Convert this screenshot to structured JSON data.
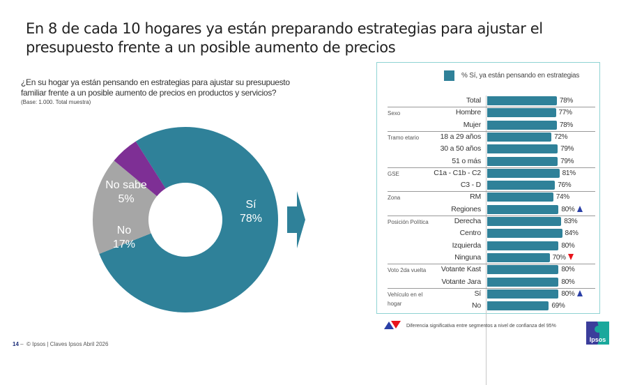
{
  "header": {
    "title": "En 8 de cada 10 hogares ya están preparando estrategias para ajustar el presupuesto frente a un posible aumento de precios"
  },
  "question": {
    "text": "¿En su hogar ya están pensando en estrategias para ajustar su presupuesto familiar frente a un posible aumento de precios en productos y servicios?",
    "base": "(Base: 1.000. Total muestra)"
  },
  "colors": {
    "teal": "#2f8199",
    "grey": "#a6a6a6",
    "purple": "#7e2f95",
    "sig_up": "#2a3fa6",
    "sig_down": "#e8141b",
    "panel_border": "#8fd3d3"
  },
  "chart_data": [
    {
      "type": "pie",
      "variant": "donut",
      "title": "¿En su hogar ya están pensando en estrategias para ajustar su presupuesto familiar frente a un posible aumento de precios en productos y servicios?",
      "slices": [
        {
          "label": "Sí",
          "value": 78,
          "display": "78%",
          "color": "#2f8199"
        },
        {
          "label": "No",
          "value": 17,
          "display": "17%",
          "color": "#a6a6a6"
        },
        {
          "label": "No sabe",
          "value": 5,
          "display": "5%",
          "color": "#7e2f95"
        }
      ]
    },
    {
      "type": "bar",
      "orientation": "horizontal",
      "legend": "% Sí, ya están pensando en estrategias",
      "xlim": [
        0,
        100
      ],
      "groups": [
        {
          "name": "",
          "rows": [
            {
              "label": "Total",
              "value": 78,
              "display": "78%",
              "sig": ""
            }
          ]
        },
        {
          "name": "Sexo",
          "rows": [
            {
              "label": "Hombre",
              "value": 77,
              "display": "77%",
              "sig": ""
            },
            {
              "label": "Mujer",
              "value": 78,
              "display": "78%",
              "sig": ""
            }
          ]
        },
        {
          "name": "Tramo etario",
          "rows": [
            {
              "label": "18 a 29 años",
              "value": 72,
              "display": "72%",
              "sig": ""
            },
            {
              "label": "30 a 50 años",
              "value": 79,
              "display": "79%",
              "sig": ""
            },
            {
              "label": "51 o más",
              "value": 79,
              "display": "79%",
              "sig": ""
            }
          ]
        },
        {
          "name": "GSE",
          "rows": [
            {
              "label": "C1a - C1b - C2",
              "value": 81,
              "display": "81%",
              "sig": ""
            },
            {
              "label": "C3 - D",
              "value": 76,
              "display": "76%",
              "sig": ""
            }
          ]
        },
        {
          "name": "Zona",
          "rows": [
            {
              "label": "RM",
              "value": 74,
              "display": "74%",
              "sig": ""
            },
            {
              "label": "Regiones",
              "value": 80,
              "display": "80%",
              "sig": "up"
            }
          ]
        },
        {
          "name": "Posición Política",
          "rows": [
            {
              "label": "Derecha",
              "value": 83,
              "display": "83%",
              "sig": ""
            },
            {
              "label": "Centro",
              "value": 84,
              "display": "84%",
              "sig": ""
            },
            {
              "label": "Izquierda",
              "value": 80,
              "display": "80%",
              "sig": ""
            },
            {
              "label": "Ninguna",
              "value": 70,
              "display": "70%",
              "sig": "down"
            }
          ]
        },
        {
          "name": "Voto 2da vuelta",
          "rows": [
            {
              "label": "Votante Kast",
              "value": 80,
              "display": "80%",
              "sig": ""
            },
            {
              "label": "Votante Jara",
              "value": 80,
              "display": "80%",
              "sig": ""
            }
          ]
        },
        {
          "name": "Vehículo en el hogar",
          "rows": [
            {
              "label": "Sí",
              "value": 80,
              "display": "80%",
              "sig": "up"
            },
            {
              "label": "No",
              "value": 69,
              "display": "69%",
              "sig": ""
            }
          ]
        }
      ],
      "footnote": "Diferencia significativa entre segmentos a nivel de confianza del 95%"
    }
  ],
  "footer": {
    "page_number": "14",
    "dash": "–",
    "copyright": "© Ipsos | Claves Ipsos Abril 2026",
    "logo_text": "Ipsos"
  }
}
